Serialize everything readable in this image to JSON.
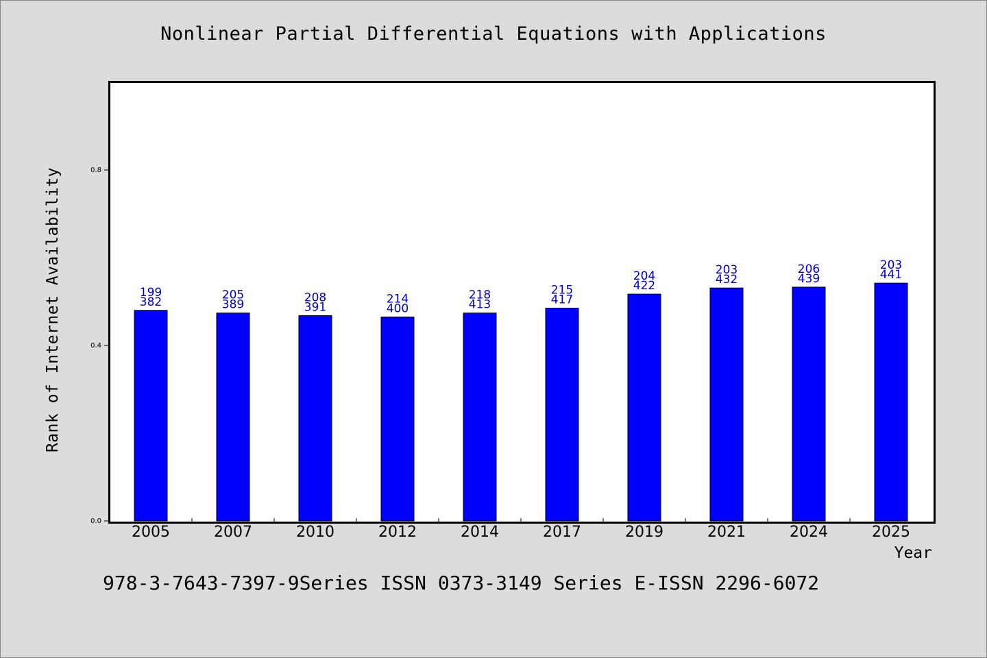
{
  "chart_data": {
    "type": "bar",
    "title": "Nonlinear Partial Differential Equations with Applications",
    "xlabel": "Year",
    "ylabel": "Rank of Internet Availability",
    "ylim": [
      0,
      1.0
    ],
    "yticks": [
      "0.0",
      "0.4",
      "0.8"
    ],
    "categories": [
      "2005",
      "2007",
      "2010",
      "2012",
      "2014",
      "2017",
      "2019",
      "2021",
      "2024",
      "2025"
    ],
    "values": [
      0.48,
      0.474,
      0.468,
      0.465,
      0.474,
      0.485,
      0.517,
      0.531,
      0.533,
      0.542
    ],
    "label_top": [
      "199",
      "205",
      "208",
      "214",
      "218",
      "215",
      "204",
      "203",
      "206",
      "203"
    ],
    "label_bottom": [
      "382",
      "389",
      "391",
      "400",
      "413",
      "417",
      "422",
      "432",
      "439",
      "441"
    ],
    "bar_color": "#0000ff",
    "label_color": "#0000cc",
    "grid": false
  },
  "footer": "978-3-7643-7397-9Series ISSN 0373-3149 Series E-ISSN 2296-6072"
}
